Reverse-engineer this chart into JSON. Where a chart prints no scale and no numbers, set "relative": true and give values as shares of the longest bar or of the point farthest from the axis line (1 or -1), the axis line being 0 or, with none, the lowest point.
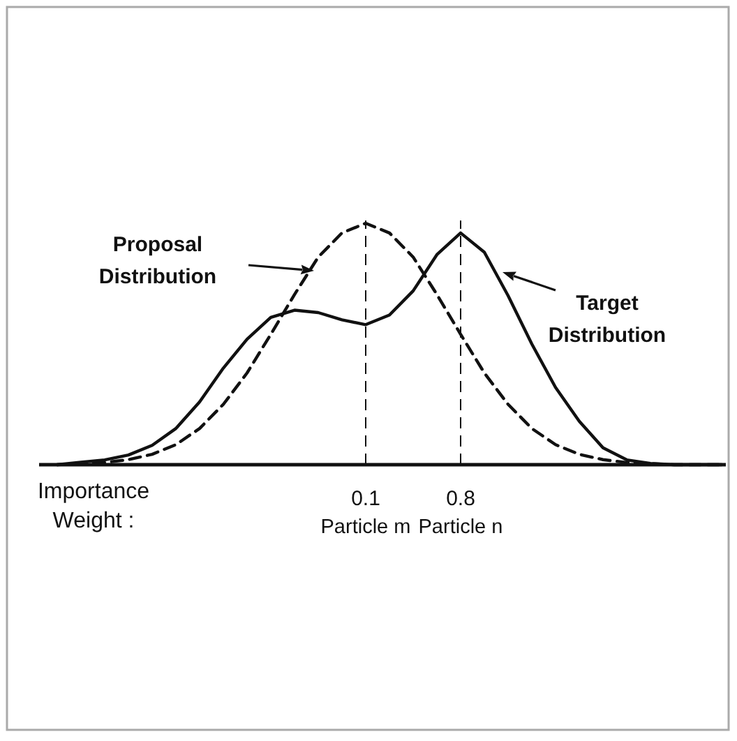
{
  "chart_data": {
    "type": "line",
    "relative": true,
    "categories": [
      null,
      null,
      null,
      null,
      null,
      null,
      null,
      null,
      null,
      null,
      null,
      null,
      null,
      "Particle m",
      null,
      null,
      null,
      "Particle n",
      null,
      null,
      null,
      null,
      null,
      null,
      null,
      null,
      null,
      null,
      null
    ],
    "series": [
      {
        "name": "Proposal Distribution",
        "color": "#111111",
        "line_style": "dashed",
        "values": [
          0,
          0.004,
          0.009,
          0.021,
          0.043,
          0.083,
          0.15,
          0.25,
          0.38,
          0.54,
          0.705,
          0.86,
          0.96,
          1,
          0.96,
          0.86,
          0.705,
          0.54,
          0.38,
          0.25,
          0.15,
          0.083,
          0.043,
          0.021,
          0.009,
          0.004,
          0,
          0,
          0
        ]
      },
      {
        "name": "Target Distribution",
        "color": "#111111",
        "line_style": "solid",
        "values": [
          0,
          0.01,
          0.02,
          0.04,
          0.08,
          0.15,
          0.26,
          0.4,
          0.52,
          0.61,
          0.64,
          0.63,
          0.6,
          0.58,
          0.62,
          0.72,
          0.87,
          0.96,
          0.88,
          0.7,
          0.5,
          0.32,
          0.18,
          0.07,
          0.02,
          0.005,
          0,
          0,
          0
        ]
      }
    ],
    "ref_lines": [
      {
        "axis": "x",
        "value": "Particle m",
        "label": "0.1",
        "line_style": "dashed"
      },
      {
        "axis": "x",
        "value": "Particle n",
        "label": "0.8",
        "line_style": "dashed"
      }
    ],
    "annotations": [
      "Importance Weight :"
    ]
  }
}
